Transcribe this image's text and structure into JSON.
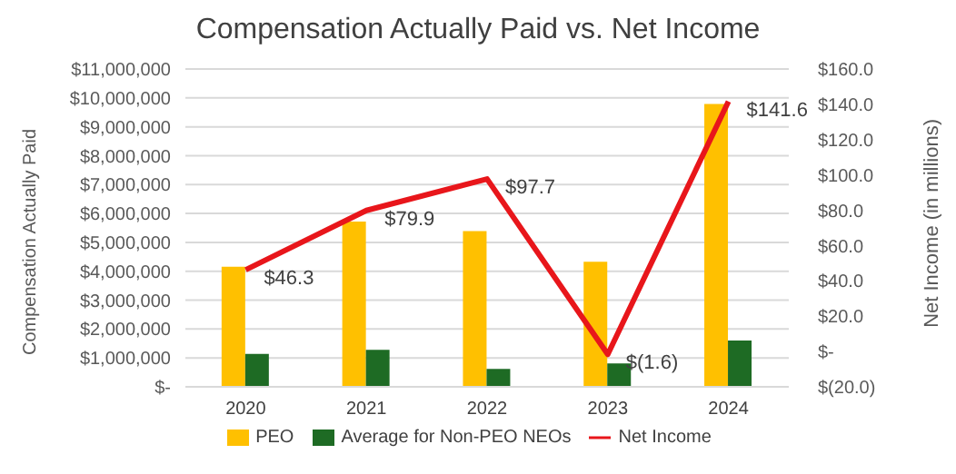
{
  "chart_data": {
    "type": "bar",
    "title": "Compensation Actually Paid vs. Net Income",
    "categories": [
      "2020",
      "2021",
      "2022",
      "2023",
      "2024"
    ],
    "ylabel": "Compensation Actually Paid",
    "y2label": "Net Income (in millions)",
    "series": [
      {
        "name": "PEO",
        "color": "#ffc000",
        "values": [
          4160000,
          5720000,
          5390000,
          4330000,
          9790000
        ]
      },
      {
        "name": "Average for Non-PEO NEOs",
        "color": "#1e6b24",
        "values": [
          1140000,
          1280000,
          620000,
          810000,
          1600000
        ]
      },
      {
        "name": "Net Income",
        "type": "line",
        "axis": "y2",
        "color": "#e8161b",
        "values": [
          46.3,
          79.9,
          97.7,
          -1.6,
          141.6
        ],
        "value_labels": [
          "$46.3",
          "$79.9",
          "$97.7",
          "$(1.6)",
          "$141.6"
        ]
      }
    ],
    "ylim": [
      0,
      11000000
    ],
    "yticks": [
      {
        "value": 0,
        "label": "$-"
      },
      {
        "value": 1000000,
        "label": "$1,000,000"
      },
      {
        "value": 2000000,
        "label": "$2,000,000"
      },
      {
        "value": 3000000,
        "label": "$3,000,000"
      },
      {
        "value": 4000000,
        "label": "$4,000,000"
      },
      {
        "value": 5000000,
        "label": "$5,000,000"
      },
      {
        "value": 6000000,
        "label": "$6,000,000"
      },
      {
        "value": 7000000,
        "label": "$7,000,000"
      },
      {
        "value": 8000000,
        "label": "$8,000,000"
      },
      {
        "value": 9000000,
        "label": "$9,000,000"
      },
      {
        "value": 10000000,
        "label": "$10,000,000"
      },
      {
        "value": 11000000,
        "label": "$11,000,000"
      }
    ],
    "y2lim": [
      -20,
      160
    ],
    "y2ticks": [
      {
        "value": -20,
        "label": "$(20.0)"
      },
      {
        "value": 0,
        "label": "$-"
      },
      {
        "value": 20,
        "label": "$20.0"
      },
      {
        "value": 40,
        "label": "$40.0"
      },
      {
        "value": 60,
        "label": "$60.0"
      },
      {
        "value": 80,
        "label": "$80.0"
      },
      {
        "value": 100,
        "label": "$100.0"
      },
      {
        "value": 120,
        "label": "$120.0"
      },
      {
        "value": 140,
        "label": "$140.0"
      },
      {
        "value": 160,
        "label": "$160.0"
      }
    ],
    "grid": "y",
    "legend": "bottom",
    "marker": "none"
  }
}
